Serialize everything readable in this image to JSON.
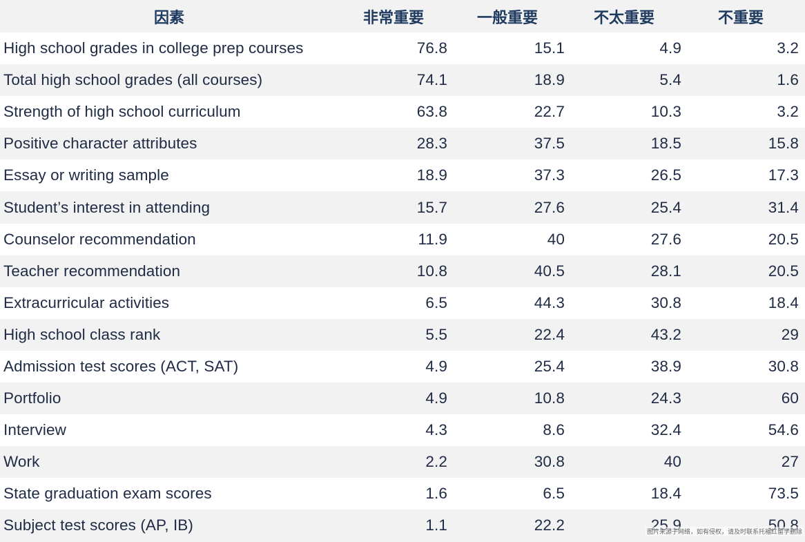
{
  "table": {
    "headers": [
      "因素",
      "非常重要",
      "一般重要",
      "不太重要",
      "不重要"
    ],
    "rows": [
      {
        "factor": "High school grades in college prep courses",
        "values": [
          "76.8",
          "15.1",
          "4.9",
          "3.2"
        ]
      },
      {
        "factor": "Total high school grades (all courses)",
        "values": [
          "74.1",
          "18.9",
          "5.4",
          "1.6"
        ]
      },
      {
        "factor": "Strength of high school curriculum",
        "values": [
          "63.8",
          "22.7",
          "10.3",
          "3.2"
        ]
      },
      {
        "factor": "Positive character attributes",
        "values": [
          "28.3",
          "37.5",
          "18.5",
          "15.8"
        ]
      },
      {
        "factor": "Essay or writing sample",
        "values": [
          "18.9",
          "37.3",
          "26.5",
          "17.3"
        ]
      },
      {
        "factor": "Student’s interest in attending",
        "values": [
          "15.7",
          "27.6",
          "25.4",
          "31.4"
        ]
      },
      {
        "factor": "Counselor recommendation",
        "values": [
          "11.9",
          "40",
          "27.6",
          "20.5"
        ]
      },
      {
        "factor": "Teacher recommendation",
        "values": [
          "10.8",
          "40.5",
          "28.1",
          "20.5"
        ]
      },
      {
        "factor": "Extracurricular activities",
        "values": [
          "6.5",
          "44.3",
          "30.8",
          "18.4"
        ]
      },
      {
        "factor": "High school class rank",
        "values": [
          "5.5",
          "22.4",
          "43.2",
          "29"
        ]
      },
      {
        "factor": "Admission test scores (ACT, SAT)",
        "values": [
          "4.9",
          "25.4",
          "38.9",
          "30.8"
        ]
      },
      {
        "factor": "Portfolio",
        "values": [
          "4.9",
          "10.8",
          "24.3",
          "60"
        ]
      },
      {
        "factor": "Interview",
        "values": [
          "4.3",
          "8.6",
          "32.4",
          "54.6"
        ]
      },
      {
        "factor": "Work",
        "values": [
          "2.2",
          "30.8",
          "40",
          "27"
        ]
      },
      {
        "factor": "State graduation exam scores",
        "values": [
          "1.6",
          "6.5",
          "18.4",
          "73.5"
        ]
      },
      {
        "factor": "Subject test scores (AP, IB)",
        "values": [
          "1.1",
          "22.2",
          "25.9",
          "50.8"
        ]
      }
    ]
  },
  "watermark": "图片来源于网络，如有侵权，请及时联系托福红留学删除",
  "colors": {
    "header_text": "#1f3a5f",
    "body_text": "#1f2a44",
    "stripe": "#f2f2f2"
  }
}
